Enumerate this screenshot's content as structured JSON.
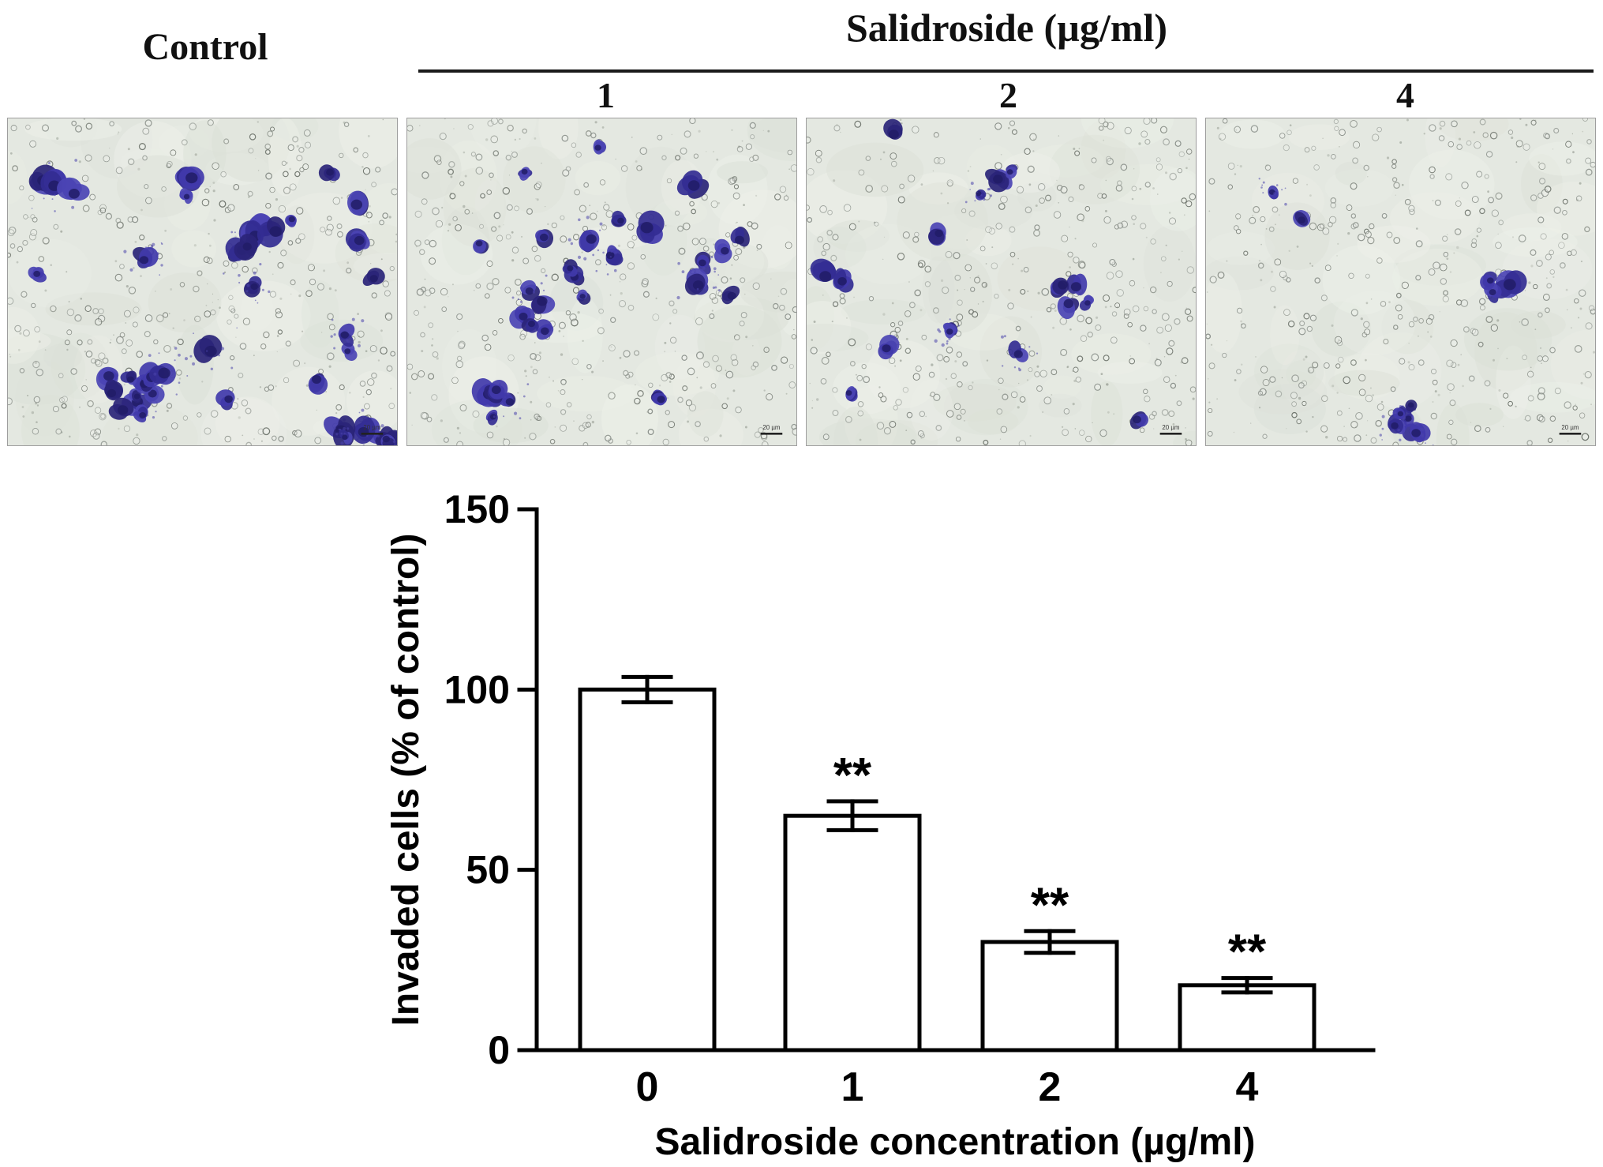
{
  "header": {
    "control_label": "Control",
    "group_label": "Salidroside (µg/ml)",
    "doses": [
      "1",
      "2",
      "4"
    ]
  },
  "micrographs": {
    "scale_bar_label": "20 µm",
    "background_color": "#e4e8e1",
    "stain_color": "#38329e",
    "panels": [
      {
        "label": "Control",
        "approx_cell_count": 42
      },
      {
        "label": "Salidroside 1 µg/ml",
        "approx_cell_count": 27
      },
      {
        "label": "Salidroside 2 µg/ml",
        "approx_cell_count": 17
      },
      {
        "label": "Salidroside 4 µg/ml",
        "approx_cell_count": 11
      }
    ]
  },
  "chart_data": {
    "type": "bar",
    "categories": [
      "0",
      "1",
      "2",
      "4"
    ],
    "values": [
      100,
      65,
      30,
      18
    ],
    "errors": [
      3.5,
      4,
      3,
      2
    ],
    "significance": [
      "",
      "**",
      "**",
      "**"
    ],
    "title": "",
    "xlabel": "Salidroside concentration (µg/ml)",
    "ylabel": "Invaded cells (% of control)",
    "ylim": [
      0,
      150
    ],
    "yticks": [
      0,
      50,
      100,
      150
    ],
    "bar_fill": "#ffffff",
    "bar_stroke": "#000000",
    "grid": false,
    "legend": false
  }
}
